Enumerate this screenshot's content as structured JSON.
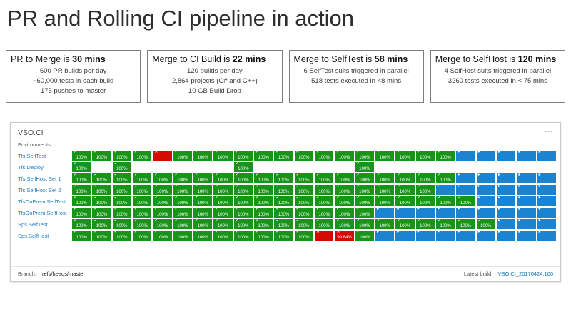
{
  "page": {
    "title": "PR and Rolling CI pipeline in action"
  },
  "stats": [
    {
      "title_prefix": "PR to Merge is",
      "title_value": "30 mins",
      "lines": [
        "600 PR builds per day",
        "~60,000 tests in each build",
        "175 pushes to master"
      ]
    },
    {
      "title_prefix": "Merge to CI Build is",
      "title_value": "22 mins",
      "lines": [
        "120 builds per day",
        "2,864 projects (C# and C++)",
        "10 GB Build Drop"
      ]
    },
    {
      "title_prefix": "Merge to SelfTest is",
      "title_value": "58 mins",
      "lines": [
        "6 SelfTest suits triggered in parallel",
        "518 tests executed in <8 mins"
      ]
    },
    {
      "title_prefix": "Merge to SelfHost is",
      "title_value": "120 mins",
      "lines": [
        "4 SelfHost suits triggered in parallel",
        "3260 tests executed in < 75 mins"
      ]
    }
  ],
  "dashboard": {
    "title": "VSO.CI",
    "menu_icon": "⋯",
    "environments_header": "Environments",
    "columns": 24,
    "cell_types": {
      "g": {
        "status": "pass",
        "icon": "check",
        "glyph": "✓",
        "label": "100%"
      },
      "x": {
        "status": "fail",
        "icon": "cross",
        "glyph": "✕",
        "label": ""
      },
      "f": {
        "status": "fail",
        "icon": "cross",
        "glyph": "✕",
        "label": "99.84%"
      },
      "b": {
        "status": "running",
        "icon": "play",
        "glyph": "▸",
        "label": ""
      },
      ".": {
        "status": "empty",
        "icon": "",
        "glyph": "",
        "label": ""
      }
    },
    "rows": [
      {
        "label": "Tfs.SelfTest",
        "cells": "ggggxggggggggggggggbbbbb"
      },
      {
        "label": "Tfs.Deploy",
        "cells": "g.g.....g.....g........."
      },
      {
        "label": "Tfs.SelfHost Set 1",
        "cells": "gggggggggggggggggggbbbbb"
      },
      {
        "label": "Tfs.SelfHost Set 2",
        "cells": "ggggggggggggggggggbbbbbb"
      },
      {
        "label": "TfsOnPrem.SelfTest",
        "cells": "ggggggggggggggggggggbbbb"
      },
      {
        "label": "TfsOnPrem.SelfHost",
        "cells": "gggggggggggggggbbbbbbbbb"
      },
      {
        "label": "Sps.SelfTest",
        "cells": "gggggggggggggggggggggbbb"
      },
      {
        "label": "Sps.SelfHost",
        "cells": "ggggggggggggxfgbbbbbbbbb"
      }
    ],
    "footer": {
      "branch_label": "Branch:",
      "branch_value": "refs/heads/master",
      "latest_label": "Latest build:",
      "latest_value": "VSO.CI_20170424.100"
    }
  },
  "colors": {
    "green": "#189418",
    "red": "#d40b00",
    "blue": "#1b84d1",
    "link": "#0b71b8",
    "env_label": "#1e7ec2",
    "border_gray": "#7f7f7f"
  }
}
